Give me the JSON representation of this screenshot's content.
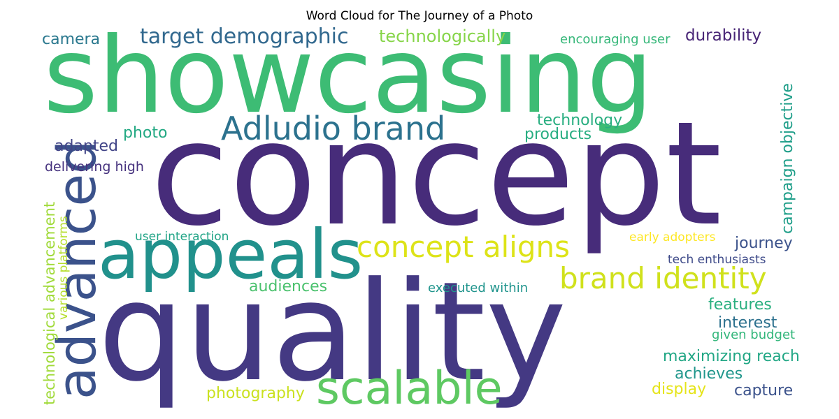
{
  "chart_data": {
    "type": "wordcloud",
    "title": "Word Cloud for The Journey of a Photo",
    "words": [
      {
        "text": "concept",
        "weight": 100,
        "color": "#472c7a"
      },
      {
        "text": "quality",
        "weight": 96,
        "color": "#443983"
      },
      {
        "text": "showcasing",
        "weight": 74,
        "color": "#3dbc74"
      },
      {
        "text": "appeals",
        "weight": 48,
        "color": "#21918c"
      },
      {
        "text": "advanced",
        "weight": 38,
        "color": "#3b528b"
      },
      {
        "text": "scalable",
        "weight": 34,
        "color": "#5ec962"
      },
      {
        "text": "Adludio brand",
        "weight": 26,
        "color": "#2c728e"
      },
      {
        "text": "concept aligns",
        "weight": 26,
        "color": "#dde318"
      },
      {
        "text": "brand identity",
        "weight": 26,
        "color": "#d0e11c"
      },
      {
        "text": "target demographic",
        "weight": 20,
        "color": "#31688e"
      },
      {
        "text": "technologically",
        "weight": 15,
        "color": "#86d549"
      },
      {
        "text": "durability",
        "weight": 15,
        "color": "#482576"
      },
      {
        "text": "camera",
        "weight": 14,
        "color": "#2a788e"
      },
      {
        "text": "encouraging user",
        "weight": 12,
        "color": "#35b779"
      },
      {
        "text": "technology",
        "weight": 15,
        "color": "#28ae80"
      },
      {
        "text": "products",
        "weight": 15,
        "color": "#27ad81"
      },
      {
        "text": "photo",
        "weight": 15,
        "color": "#23a983"
      },
      {
        "text": "adapted",
        "weight": 15,
        "color": "#414487"
      },
      {
        "text": "delivering high",
        "weight": 13,
        "color": "#46327e"
      },
      {
        "text": "campaign objective",
        "weight": 15,
        "color": "#1f9e89"
      },
      {
        "text": "technological advancement",
        "weight": 14,
        "color": "#a0da39"
      },
      {
        "text": "various platforms",
        "weight": 11,
        "color": "#b5de2b"
      },
      {
        "text": "user interaction",
        "weight": 12,
        "color": "#20a486"
      },
      {
        "text": "early adopters",
        "weight": 12,
        "color": "#fde725"
      },
      {
        "text": "journey",
        "weight": 15,
        "color": "#3b528b"
      },
      {
        "text": "tech enthusiasts",
        "weight": 12,
        "color": "#3e4a89"
      },
      {
        "text": "audiences",
        "weight": 15,
        "color": "#4ac16d"
      },
      {
        "text": "executed within",
        "weight": 13,
        "color": "#1f948c"
      },
      {
        "text": "features",
        "weight": 15,
        "color": "#29af7f"
      },
      {
        "text": "interest",
        "weight": 15,
        "color": "#2d718e"
      },
      {
        "text": "given budget",
        "weight": 12,
        "color": "#32b67a"
      },
      {
        "text": "maximizing reach",
        "weight": 15,
        "color": "#22a785"
      },
      {
        "text": "achieves",
        "weight": 15,
        "color": "#1f968b"
      },
      {
        "text": "photography",
        "weight": 15,
        "color": "#cae11f"
      },
      {
        "text": "display",
        "weight": 15,
        "color": "#e5e419"
      },
      {
        "text": "capture",
        "weight": 15,
        "color": "#3b528b"
      }
    ]
  }
}
